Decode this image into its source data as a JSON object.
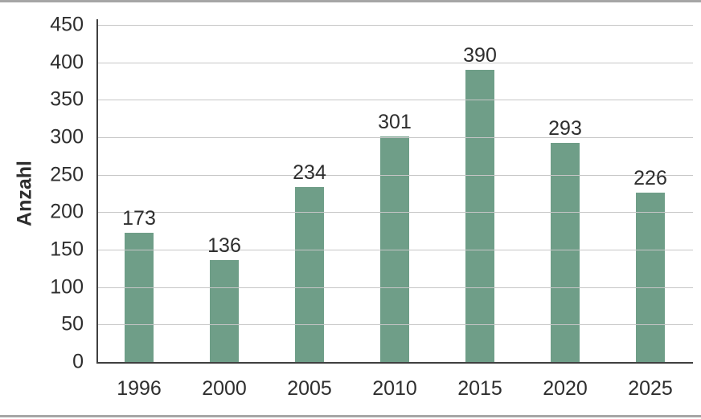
{
  "chart_data": {
    "type": "bar",
    "categories": [
      "1996",
      "2000",
      "2005",
      "2010",
      "2015",
      "2020",
      "2025"
    ],
    "values": [
      173,
      136,
      234,
      301,
      390,
      293,
      226
    ],
    "title": "",
    "xlabel": "",
    "ylabel": "Anzahl",
    "ylim": [
      0,
      450
    ],
    "ytick_step": 50,
    "yticks": [
      0,
      50,
      100,
      150,
      200,
      250,
      300,
      350,
      400,
      450
    ],
    "grid": "horizontal-over-bars",
    "legend": "none",
    "bar_value_labels": [
      173,
      136,
      234,
      301,
      390,
      293,
      226
    ],
    "colors": {
      "bar": "#6f9e88",
      "gridline": "#c6c6c6",
      "axis": "#3f3f3f",
      "text": "#2e2e2e",
      "page_border": "#a6a6a6",
      "background": "#ffffff"
    }
  }
}
